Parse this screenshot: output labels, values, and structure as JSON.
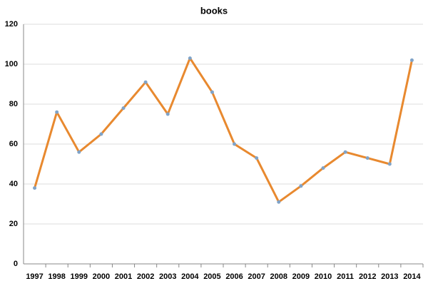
{
  "chart_data": {
    "type": "line",
    "title": "books",
    "categories": [
      "1997",
      "1998",
      "1999",
      "2000",
      "2001",
      "2002",
      "2003",
      "2004",
      "2005",
      "2006",
      "2007",
      "2008",
      "2009",
      "2010",
      "2011",
      "2012",
      "2013",
      "2014"
    ],
    "series": [
      {
        "name": "books",
        "color": "#e8892f",
        "marker_color": "#7fa3c8",
        "values": [
          38,
          76,
          56,
          65,
          78,
          91,
          75,
          103,
          86,
          60,
          53,
          31,
          39,
          48,
          56,
          53,
          50,
          102
        ]
      }
    ],
    "ylim": [
      0,
      120
    ],
    "yticks": [
      0,
      20,
      40,
      60,
      80,
      100,
      120
    ],
    "grid": true
  }
}
